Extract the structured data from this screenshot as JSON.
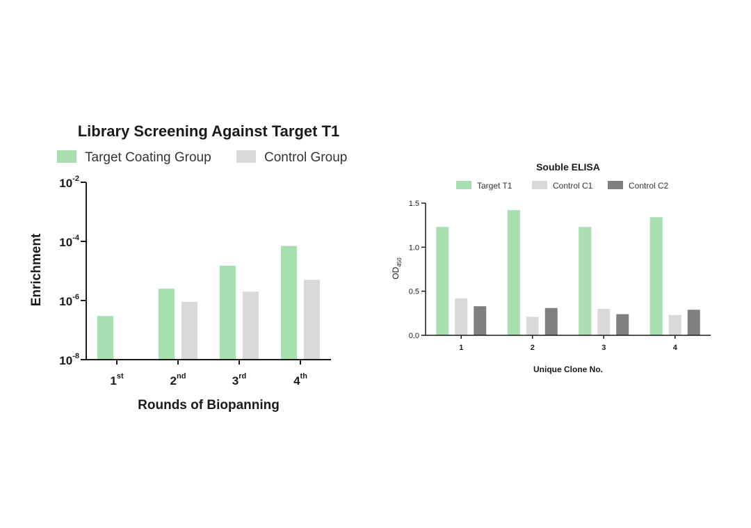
{
  "chart_data": [
    {
      "type": "bar",
      "title": "Library Screening Against Target T1",
      "xlabel": "Rounds of Biopanning",
      "ylabel": "Enrichment",
      "yscale": "log",
      "ylim": [
        1e-08,
        0.01
      ],
      "y_tick_values": [
        1e-08,
        1e-06,
        0.0001,
        0.01
      ],
      "y_tick_labels": [
        {
          "base": "10",
          "exp": "-8"
        },
        {
          "base": "10",
          "exp": "-6"
        },
        {
          "base": "10",
          "exp": "-4"
        },
        {
          "base": "10",
          "exp": "-2"
        }
      ],
      "categories": [
        {
          "base": "1",
          "sup": "st"
        },
        {
          "base": "2",
          "sup": "nd"
        },
        {
          "base": "3",
          "sup": "rd"
        },
        {
          "base": "4",
          "sup": "th"
        }
      ],
      "series": [
        {
          "name": "Target Coating Group",
          "color": "#a8deb0",
          "values": [
            3e-07,
            2.5e-06,
            1.5e-05,
            7e-05
          ]
        },
        {
          "name": "Control Group",
          "color": "#d9d9d9",
          "values": [
            null,
            9e-07,
            2e-06,
            5e-06
          ]
        }
      ],
      "legend_position": "top"
    },
    {
      "type": "bar",
      "title": "Souble ELISA",
      "xlabel": "Unique Clone No.",
      "ylabel": {
        "base": "OD",
        "sub": "450"
      },
      "ylim": [
        0,
        1.5
      ],
      "y_tick_values": [
        0,
        0.5,
        1.0,
        1.5
      ],
      "y_tick_labels": [
        "0.0",
        "0.5",
        "1.0",
        "1.5"
      ],
      "categories": [
        "1",
        "2",
        "3",
        "4"
      ],
      "series": [
        {
          "name": "Target T1",
          "color": "#a8deb0",
          "values": [
            1.23,
            1.42,
            1.23,
            1.34
          ]
        },
        {
          "name": "Control C1",
          "color": "#d9d9d9",
          "values": [
            0.42,
            0.21,
            0.3,
            0.23
          ]
        },
        {
          "name": "Control C2",
          "color": "#808080",
          "values": [
            0.33,
            0.31,
            0.24,
            0.29
          ]
        }
      ],
      "legend_position": "top"
    }
  ]
}
